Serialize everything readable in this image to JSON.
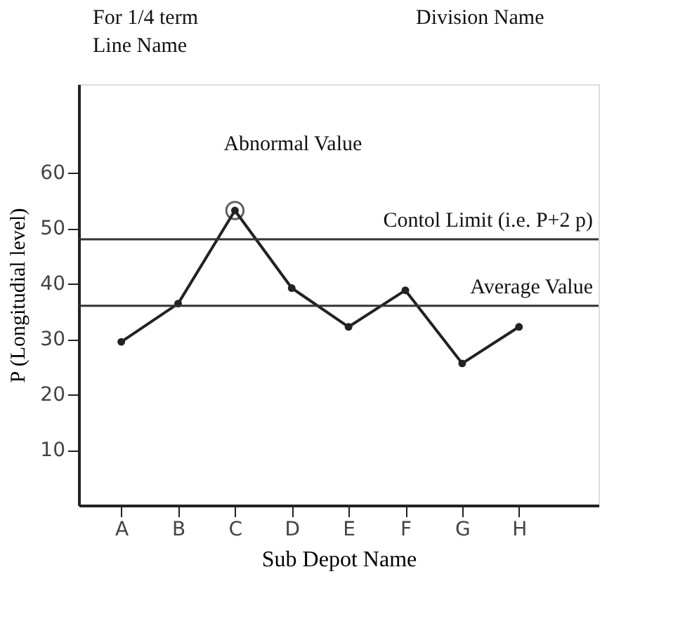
{
  "chart_data": {
    "type": "line",
    "categories": [
      "A",
      "B",
      "C",
      "D",
      "E",
      "F",
      "G",
      "H"
    ],
    "series": [
      {
        "color": "#222222",
        "values": [
          29.5,
          36.4,
          53.2,
          39.2,
          32.2,
          38.8,
          25.6,
          32.2
        ]
      }
    ],
    "xlabel": "Sub Depot Name",
    "ylabel": "P (Longitudial level)",
    "ylim": [
      0,
      76
    ],
    "yticks": [
      10,
      20,
      30,
      40,
      50,
      60
    ],
    "ref_lines": [
      {
        "axis": "y",
        "value": 48,
        "label": "Contol Limit (i.e. P+2 p)",
        "color": "#333333"
      },
      {
        "axis": "y",
        "value": 36,
        "label": "Average Value",
        "color": "#333333"
      }
    ],
    "annotations": [
      "For 1/4 term",
      "Line Name",
      "Division Name",
      {
        "text": "Abnormal Value",
        "x": "C",
        "y": 53.2
      }
    ],
    "marker": "circle",
    "line_style": "solid",
    "grid": false
  }
}
